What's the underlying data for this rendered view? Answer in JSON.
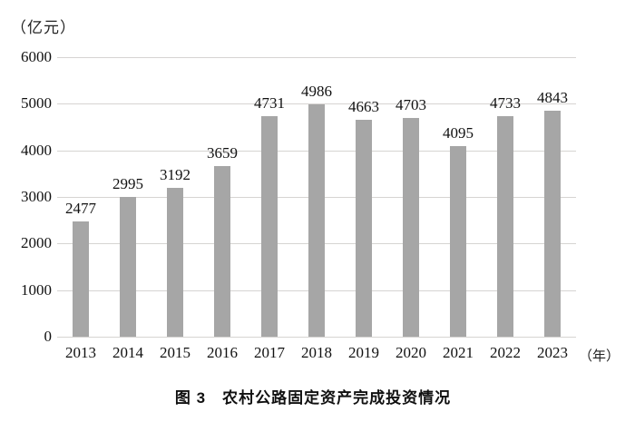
{
  "unit_label": "（亿元）",
  "year_suffix": "（年）",
  "caption": "图 3　农村公路固定资产完成投资情况",
  "chart_data": {
    "type": "bar",
    "title": "图 3 农村公路固定资产完成投资情况",
    "categories": [
      "2013",
      "2014",
      "2015",
      "2016",
      "2017",
      "2018",
      "2019",
      "2020",
      "2021",
      "2022",
      "2023"
    ],
    "values": [
      2477,
      2995,
      3192,
      3659,
      4731,
      4986,
      4663,
      4703,
      4095,
      4733,
      4843
    ],
    "xlabel": "（年）",
    "ylabel": "（亿元）",
    "ylim": [
      0,
      6000
    ],
    "ytick_step": 1000,
    "yticks": [
      0,
      1000,
      2000,
      3000,
      4000,
      5000,
      6000
    ],
    "grid": true,
    "legend": "none",
    "bar_color": "#a6a6a6",
    "gridline_color": "#d6d4d2"
  }
}
